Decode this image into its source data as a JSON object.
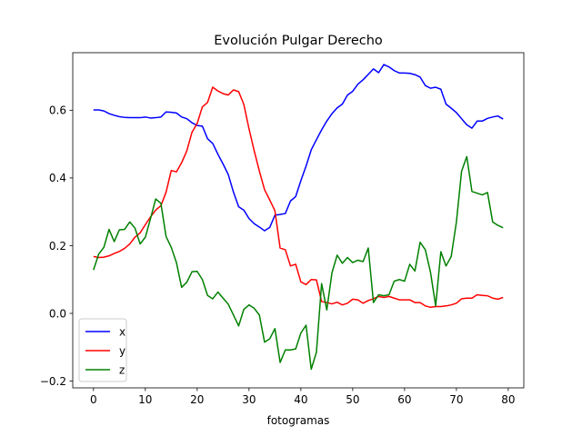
{
  "chart_data": {
    "type": "line",
    "title": "Evolución Pulgar Derecho",
    "xlabel": "fotogramas",
    "ylabel": "",
    "xlim": [
      -4,
      83
    ],
    "ylim": [
      -0.22,
      0.77
    ],
    "xticks": [
      0,
      10,
      20,
      30,
      40,
      50,
      60,
      70,
      80
    ],
    "yticks": [
      -0.2,
      0.0,
      0.2,
      0.4,
      0.6
    ],
    "xtick_labels": [
      "0",
      "10",
      "20",
      "30",
      "40",
      "50",
      "60",
      "70",
      "80"
    ],
    "ytick_labels": [
      "−0.2",
      "0.0",
      "0.2",
      "0.4",
      "0.6"
    ],
    "grid": false,
    "legend_position": "lower-left",
    "x": [
      0,
      1,
      2,
      3,
      4,
      5,
      6,
      7,
      8,
      9,
      10,
      11,
      12,
      13,
      14,
      15,
      16,
      17,
      18,
      19,
      20,
      21,
      22,
      23,
      24,
      25,
      26,
      27,
      28,
      29,
      30,
      31,
      32,
      33,
      34,
      35,
      36,
      37,
      38,
      39,
      40,
      41,
      42,
      43,
      44,
      45,
      46,
      47,
      48,
      49,
      50,
      51,
      52,
      53,
      54,
      55,
      56,
      57,
      58,
      59,
      60,
      61,
      62,
      63,
      64,
      65,
      66,
      67,
      68,
      69,
      70,
      71,
      72,
      73,
      74,
      75,
      76,
      77,
      78,
      79
    ],
    "series": [
      {
        "name": "x",
        "color": "#0000ff",
        "values": [
          0.601,
          0.601,
          0.598,
          0.59,
          0.585,
          0.581,
          0.579,
          0.578,
          0.578,
          0.578,
          0.58,
          0.577,
          0.578,
          0.58,
          0.595,
          0.594,
          0.592,
          0.58,
          0.575,
          0.563,
          0.555,
          0.553,
          0.516,
          0.502,
          0.47,
          0.441,
          0.41,
          0.358,
          0.315,
          0.305,
          0.28,
          0.265,
          0.255,
          0.244,
          0.254,
          0.29,
          0.292,
          0.295,
          0.332,
          0.345,
          0.392,
          0.435,
          0.483,
          0.513,
          0.542,
          0.568,
          0.59,
          0.607,
          0.618,
          0.645,
          0.656,
          0.677,
          0.69,
          0.706,
          0.722,
          0.711,
          0.735,
          0.728,
          0.717,
          0.71,
          0.71,
          0.709,
          0.705,
          0.698,
          0.673,
          0.665,
          0.668,
          0.662,
          0.618,
          0.606,
          0.593,
          0.575,
          0.557,
          0.547,
          0.568,
          0.568,
          0.576,
          0.58,
          0.583,
          0.574
        ]
      },
      {
        "name": "y",
        "color": "#ff0000",
        "values": [
          0.168,
          0.165,
          0.166,
          0.17,
          0.177,
          0.183,
          0.192,
          0.205,
          0.225,
          0.238,
          0.262,
          0.285,
          0.305,
          0.318,
          0.358,
          0.422,
          0.418,
          0.445,
          0.48,
          0.535,
          0.561,
          0.61,
          0.623,
          0.668,
          0.657,
          0.649,
          0.645,
          0.66,
          0.655,
          0.617,
          0.545,
          0.48,
          0.42,
          0.365,
          0.335,
          0.303,
          0.193,
          0.188,
          0.14,
          0.145,
          0.093,
          0.085,
          0.1,
          0.099,
          0.035,
          0.032,
          0.028,
          0.033,
          0.025,
          0.03,
          0.042,
          0.04,
          0.03,
          0.038,
          0.043,
          0.05,
          0.047,
          0.05,
          0.045,
          0.04,
          0.04,
          0.04,
          0.032,
          0.032,
          0.022,
          0.018,
          0.02,
          0.02,
          0.022,
          0.025,
          0.03,
          0.043,
          0.045,
          0.045,
          0.055,
          0.053,
          0.052,
          0.045,
          0.042,
          0.047
        ]
      },
      {
        "name": "z",
        "color": "#008000",
        "values": [
          0.128,
          0.175,
          0.195,
          0.248,
          0.212,
          0.247,
          0.248,
          0.27,
          0.252,
          0.205,
          0.225,
          0.28,
          0.338,
          0.325,
          0.227,
          0.195,
          0.15,
          0.077,
          0.092,
          0.123,
          0.124,
          0.1,
          0.053,
          0.043,
          0.063,
          0.045,
          0.027,
          -0.005,
          -0.037,
          0.012,
          0.025,
          0.015,
          -0.005,
          -0.085,
          -0.075,
          -0.045,
          -0.145,
          -0.108,
          -0.108,
          -0.105,
          -0.058,
          -0.035,
          -0.165,
          -0.115,
          0.088,
          0.01,
          0.12,
          0.172,
          0.148,
          0.165,
          0.15,
          0.157,
          0.153,
          0.193,
          0.032,
          0.055,
          0.052,
          0.055,
          0.095,
          0.1,
          0.095,
          0.145,
          0.125,
          0.21,
          0.188,
          0.122,
          0.022,
          0.182,
          0.14,
          0.168,
          0.27,
          0.42,
          0.463,
          0.36,
          0.355,
          0.35,
          0.357,
          0.27,
          0.26,
          0.253
        ]
      }
    ]
  }
}
